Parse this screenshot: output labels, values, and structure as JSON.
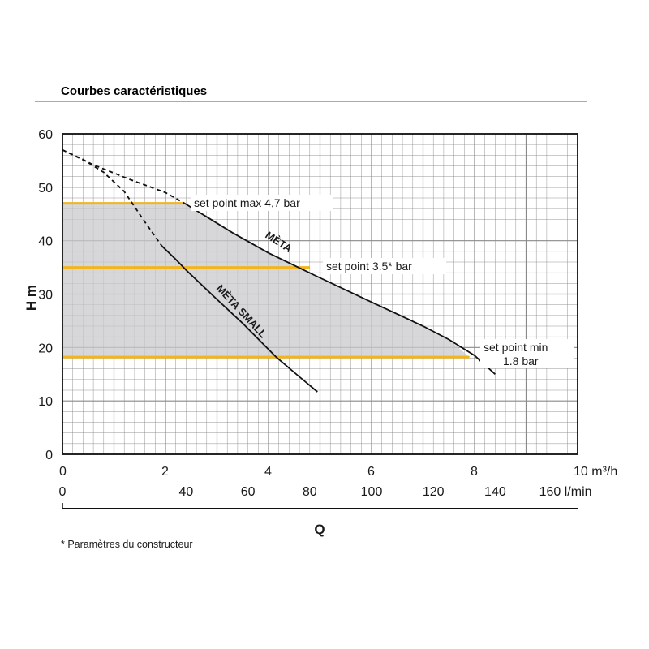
{
  "title": "Courbes caractéristiques",
  "footnote": "* Paramètres du constructeur",
  "colors": {
    "grid": "#8a8a8a",
    "fill": "#c9c9cc",
    "setpoint": "#f2b51c",
    "curve": "#111111"
  },
  "chart_data": {
    "type": "line",
    "title": "Courbes caractéristiques",
    "xlabel": "Q",
    "ylabel": "H m",
    "grid": true,
    "xlim": [
      0,
      10
    ],
    "ylim": [
      0,
      60
    ],
    "x_unit": "m³/h",
    "x2_unit": "l/min",
    "x_ticks": [
      "0",
      "2",
      "4",
      "6",
      "8",
      "10 m³/h"
    ],
    "x2_ticks": [
      "0",
      "40",
      "60",
      "80",
      "100",
      "120",
      "140",
      "160  l/min"
    ],
    "y_ticks": [
      "0",
      "10",
      "20",
      "30",
      "40",
      "50",
      "60"
    ],
    "series": [
      {
        "name": "MÈTA",
        "style": "solid",
        "points": [
          [
            2.37,
            47
          ],
          [
            3.3,
            41.5
          ],
          [
            4.0,
            37.7
          ],
          [
            4.9,
            33.5
          ],
          [
            6.0,
            28.5
          ],
          [
            7.0,
            24
          ],
          [
            7.5,
            21.5
          ],
          [
            8.0,
            18.5
          ],
          [
            8.4,
            15
          ]
        ]
      },
      {
        "name": "MÈTA",
        "style": "dashed",
        "points": [
          [
            0,
            57
          ],
          [
            0.6,
            54.2
          ],
          [
            1.3,
            51.5
          ],
          [
            2.0,
            49
          ],
          [
            2.37,
            47
          ]
        ]
      },
      {
        "name": "MÈTA SMALL",
        "style": "solid",
        "points": [
          [
            1.93,
            39
          ],
          [
            2.2,
            36.5
          ],
          [
            2.4,
            34.5
          ],
          [
            3.0,
            29
          ],
          [
            3.5,
            24.5
          ],
          [
            4.15,
            18.2
          ],
          [
            4.6,
            14.5
          ],
          [
            4.95,
            11.7
          ]
        ]
      },
      {
        "name": "MÈTA SMALL",
        "style": "dashed",
        "points": [
          [
            0,
            57
          ],
          [
            0.4,
            55.2
          ],
          [
            0.8,
            52.8
          ],
          [
            1.2,
            49.2
          ],
          [
            1.6,
            43.5
          ],
          [
            1.93,
            39
          ]
        ]
      }
    ],
    "setpoints": [
      {
        "h": 47,
        "x_end": 2.37,
        "label": [
          "set point max 4,7 bar"
        ]
      },
      {
        "h": 35,
        "x_end": 4.8,
        "label": [
          "set point 3.5* bar"
        ]
      },
      {
        "h": 18.2,
        "x_end": 7.9,
        "label": [
          "set point min",
          "1.8 bar"
        ]
      }
    ],
    "curve_labels": [
      "MÈTA",
      "MÈTA SMALL"
    ]
  }
}
